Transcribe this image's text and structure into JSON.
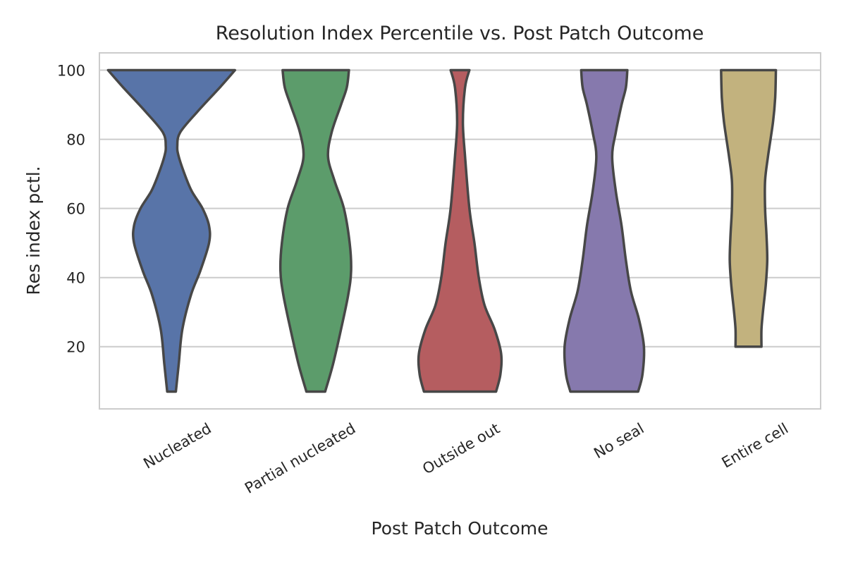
{
  "chart_data": {
    "type": "violin",
    "title": "Resolution Index Percentile vs. Post Patch Outcome",
    "xlabel": "Post Patch Outcome",
    "ylabel": "Res index pctl.",
    "ylim": [
      2,
      105
    ],
    "yticks": [
      20,
      40,
      60,
      80,
      100
    ],
    "grid": "horizontal",
    "categories": [
      "Nucleated",
      "Partial nucleated",
      "Outside out",
      "No seal",
      "Entire cell"
    ],
    "colors": [
      "#5874a8",
      "#5c9c6b",
      "#b55d60",
      "#8679ad",
      "#c2b27e"
    ],
    "series": [
      {
        "name": "Nucleated",
        "min": 7,
        "max": 100,
        "density": [
          [
            7,
            0.06
          ],
          [
            15,
            0.1
          ],
          [
            25,
            0.15
          ],
          [
            35,
            0.27
          ],
          [
            42,
            0.4
          ],
          [
            50,
            0.52
          ],
          [
            55,
            0.52
          ],
          [
            60,
            0.43
          ],
          [
            65,
            0.28
          ],
          [
            70,
            0.18
          ],
          [
            75,
            0.1
          ],
          [
            78,
            0.08
          ],
          [
            82,
            0.12
          ],
          [
            88,
            0.36
          ],
          [
            95,
            0.67
          ],
          [
            100,
            0.88
          ]
        ]
      },
      {
        "name": "Partial nucleated",
        "min": 7,
        "max": 100,
        "density": [
          [
            7,
            0.13
          ],
          [
            15,
            0.24
          ],
          [
            25,
            0.35
          ],
          [
            35,
            0.45
          ],
          [
            42,
            0.49
          ],
          [
            50,
            0.47
          ],
          [
            60,
            0.39
          ],
          [
            68,
            0.26
          ],
          [
            75,
            0.17
          ],
          [
            82,
            0.22
          ],
          [
            90,
            0.35
          ],
          [
            95,
            0.43
          ],
          [
            100,
            0.46
          ]
        ]
      },
      {
        "name": "Outside out",
        "min": 7,
        "max": 100,
        "density": [
          [
            7,
            0.5
          ],
          [
            12,
            0.56
          ],
          [
            18,
            0.57
          ],
          [
            25,
            0.48
          ],
          [
            32,
            0.34
          ],
          [
            40,
            0.26
          ],
          [
            50,
            0.2
          ],
          [
            60,
            0.13
          ],
          [
            75,
            0.07
          ],
          [
            85,
            0.04
          ],
          [
            95,
            0.07
          ],
          [
            100,
            0.13
          ]
        ]
      },
      {
        "name": "No seal",
        "min": 7,
        "max": 100,
        "density": [
          [
            7,
            0.47
          ],
          [
            12,
            0.53
          ],
          [
            20,
            0.55
          ],
          [
            28,
            0.48
          ],
          [
            36,
            0.37
          ],
          [
            45,
            0.3
          ],
          [
            55,
            0.24
          ],
          [
            65,
            0.16
          ],
          [
            75,
            0.11
          ],
          [
            82,
            0.16
          ],
          [
            90,
            0.24
          ],
          [
            95,
            0.3
          ],
          [
            100,
            0.32
          ]
        ]
      },
      {
        "name": "Entire cell",
        "min": 20,
        "max": 100,
        "density": [
          [
            20,
            0.18
          ],
          [
            25,
            0.18
          ],
          [
            30,
            0.2
          ],
          [
            38,
            0.24
          ],
          [
            45,
            0.26
          ],
          [
            52,
            0.25
          ],
          [
            60,
            0.23
          ],
          [
            68,
            0.23
          ],
          [
            75,
            0.27
          ],
          [
            85,
            0.34
          ],
          [
            92,
            0.37
          ],
          [
            100,
            0.38
          ]
        ]
      }
    ]
  }
}
